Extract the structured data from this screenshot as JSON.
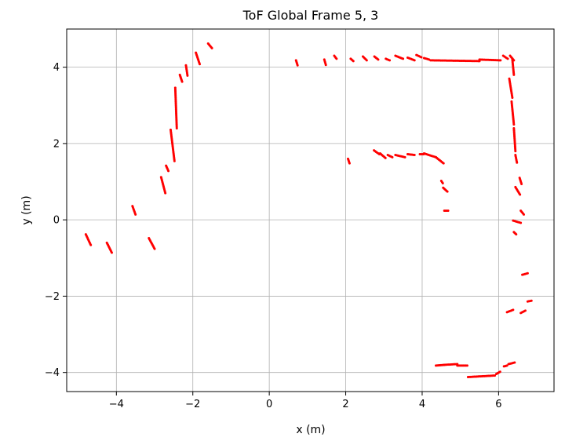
{
  "chart_data": {
    "type": "scatter",
    "title": "ToF Global Frame 5, 3",
    "xlabel": "x (m)",
    "ylabel": "y (m)",
    "xlim": [
      -5.3,
      7.45
    ],
    "ylim": [
      -4.5,
      5.0
    ],
    "xticks": [
      -4,
      -2,
      0,
      2,
      4,
      6
    ],
    "yticks": [
      -4,
      -2,
      0,
      2,
      4
    ],
    "xtick_labels": [
      "−4",
      "−2",
      "0",
      "2",
      "4",
      "6"
    ],
    "ytick_labels": [
      "−4",
      "−2",
      "0",
      "2",
      "4"
    ],
    "grid": true,
    "marker_color": "#ff0000",
    "segments": [
      [
        [
          -4.8,
          -0.38
        ],
        [
          -4.67,
          -0.66
        ]
      ],
      [
        [
          -4.25,
          -0.6
        ],
        [
          -4.12,
          -0.86
        ]
      ],
      [
        [
          -3.58,
          0.36
        ],
        [
          -3.5,
          0.14
        ]
      ],
      [
        [
          -3.15,
          -0.48
        ],
        [
          -3.0,
          -0.76
        ]
      ],
      [
        [
          -2.83,
          1.12
        ],
        [
          -2.72,
          0.7
        ]
      ],
      [
        [
          -2.7,
          1.42
        ],
        [
          -2.64,
          1.28
        ]
      ],
      [
        [
          -2.58,
          2.36
        ],
        [
          -2.48,
          1.54
        ]
      ],
      [
        [
          -2.46,
          3.46
        ],
        [
          -2.42,
          2.4
        ]
      ],
      [
        [
          -2.34,
          3.8
        ],
        [
          -2.28,
          3.62
        ]
      ],
      [
        [
          -2.18,
          4.05
        ],
        [
          -2.14,
          3.78
        ]
      ],
      [
        [
          -1.92,
          4.38
        ],
        [
          -1.82,
          4.08
        ]
      ],
      [
        [
          -1.6,
          4.62
        ],
        [
          -1.5,
          4.5
        ]
      ],
      [
        [
          0.7,
          4.18
        ],
        [
          0.74,
          4.05
        ]
      ],
      [
        [
          1.44,
          4.2
        ],
        [
          1.48,
          4.06
        ]
      ],
      [
        [
          1.7,
          4.3
        ],
        [
          1.76,
          4.22
        ]
      ],
      [
        [
          2.13,
          4.22
        ],
        [
          2.2,
          4.16
        ]
      ],
      [
        [
          2.45,
          4.28
        ],
        [
          2.55,
          4.18
        ]
      ],
      [
        [
          2.75,
          4.28
        ],
        [
          2.85,
          4.2
        ]
      ],
      [
        [
          3.05,
          4.22
        ],
        [
          3.15,
          4.18
        ]
      ],
      [
        [
          3.3,
          4.3
        ],
        [
          3.5,
          4.22
        ]
      ],
      [
        [
          3.62,
          4.25
        ],
        [
          3.8,
          4.18
        ]
      ],
      [
        [
          3.85,
          4.32
        ],
        [
          3.98,
          4.26
        ]
      ],
      [
        [
          4.05,
          4.24
        ],
        [
          4.18,
          4.2
        ]
      ],
      [
        [
          4.22,
          4.18
        ],
        [
          5.5,
          4.16
        ]
      ],
      [
        [
          5.5,
          4.2
        ],
        [
          6.05,
          4.18
        ]
      ],
      [
        [
          6.12,
          4.3
        ],
        [
          6.24,
          4.22
        ]
      ],
      [
        [
          6.3,
          4.3
        ],
        [
          6.4,
          4.18
        ]
      ],
      [
        [
          6.36,
          4.2
        ],
        [
          6.4,
          3.8
        ]
      ],
      [
        [
          6.28,
          3.7
        ],
        [
          6.36,
          3.2
        ]
      ],
      [
        [
          6.34,
          3.1
        ],
        [
          6.4,
          2.5
        ]
      ],
      [
        [
          6.4,
          2.4
        ],
        [
          6.44,
          1.8
        ]
      ],
      [
        [
          6.44,
          1.7
        ],
        [
          6.48,
          1.5
        ]
      ],
      [
        [
          6.55,
          1.1
        ],
        [
          6.6,
          0.94
        ]
      ],
      [
        [
          6.44,
          0.86
        ],
        [
          6.56,
          0.66
        ]
      ],
      [
        [
          6.58,
          0.24
        ],
        [
          6.66,
          0.14
        ]
      ],
      [
        [
          6.38,
          -0.02
        ],
        [
          6.58,
          -0.08
        ]
      ],
      [
        [
          6.4,
          -0.32
        ],
        [
          6.46,
          -0.38
        ]
      ],
      [
        [
          6.62,
          -1.44
        ],
        [
          6.76,
          -1.4
        ]
      ],
      [
        [
          6.76,
          -2.14
        ],
        [
          6.86,
          -2.12
        ]
      ],
      [
        [
          6.58,
          -2.44
        ],
        [
          6.7,
          -2.38
        ]
      ],
      [
        [
          6.22,
          -2.42
        ],
        [
          6.38,
          -2.36
        ]
      ],
      [
        [
          6.26,
          -3.78
        ],
        [
          6.42,
          -3.74
        ]
      ],
      [
        [
          6.14,
          -3.84
        ],
        [
          6.22,
          -3.82
        ]
      ],
      [
        [
          5.94,
          -4.04
        ],
        [
          6.04,
          -3.98
        ]
      ],
      [
        [
          5.2,
          -4.12
        ],
        [
          5.9,
          -4.08
        ]
      ],
      [
        [
          4.92,
          -3.82
        ],
        [
          5.18,
          -3.82
        ]
      ],
      [
        [
          4.58,
          -3.8
        ],
        [
          4.92,
          -3.78
        ]
      ],
      [
        [
          4.36,
          -3.82
        ],
        [
          4.58,
          -3.8
        ]
      ],
      [
        [
          4.58,
          0.24
        ],
        [
          4.68,
          0.24
        ]
      ],
      [
        [
          4.55,
          0.84
        ],
        [
          4.66,
          0.74
        ]
      ],
      [
        [
          4.5,
          1.02
        ],
        [
          4.54,
          0.96
        ]
      ],
      [
        [
          4.36,
          1.64
        ],
        [
          4.56,
          1.48
        ]
      ],
      [
        [
          4.05,
          1.74
        ],
        [
          4.36,
          1.64
        ]
      ],
      [
        [
          3.94,
          1.72
        ],
        [
          4.04,
          1.72
        ]
      ],
      [
        [
          3.62,
          1.72
        ],
        [
          3.8,
          1.7
        ]
      ],
      [
        [
          3.3,
          1.7
        ],
        [
          3.55,
          1.64
        ]
      ],
      [
        [
          3.1,
          1.7
        ],
        [
          3.22,
          1.64
        ]
      ],
      [
        [
          2.9,
          1.74
        ],
        [
          3.04,
          1.62
        ]
      ],
      [
        [
          2.74,
          1.82
        ],
        [
          2.88,
          1.72
        ]
      ],
      [
        [
          2.06,
          1.6
        ],
        [
          2.1,
          1.48
        ]
      ]
    ]
  }
}
